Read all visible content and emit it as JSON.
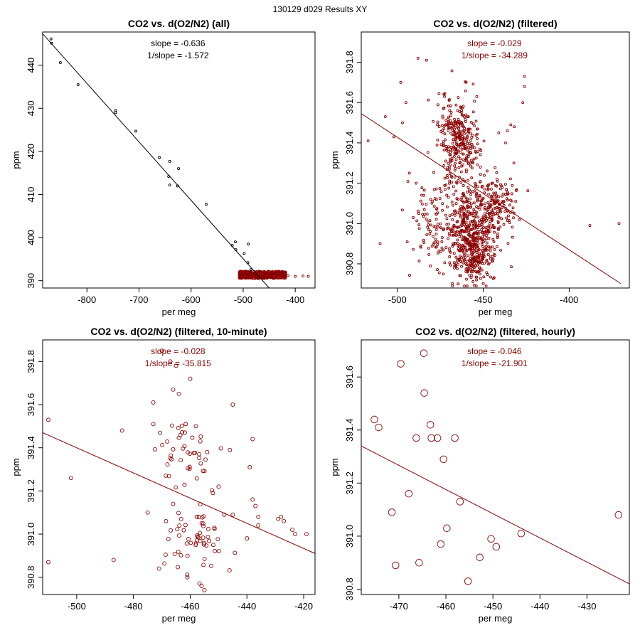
{
  "page_title": "130129   d029   Results XY",
  "chart_data": [
    {
      "type": "scatter",
      "title": "CO2 vs. d(O2/N2) (all)",
      "xlabel": "per meg",
      "ylabel": "ppm",
      "xlim": [
        -885,
        -362
      ],
      "ylim": [
        388.3,
        447.7
      ],
      "xticks": [
        -800,
        -700,
        -600,
        -500,
        -400
      ],
      "yticks": [
        390,
        400,
        410,
        420,
        430,
        440
      ],
      "point_color": "#000000",
      "point_size": "small",
      "annotations": [
        "slope = -0.636",
        "1/slope = -1.572"
      ],
      "fit_line": {
        "slope": -0.636,
        "x": [
          -885,
          -450
        ],
        "y": [
          447.3,
          388.3
        ]
      },
      "points": {
        "x": [
          -869,
          -868,
          -851,
          -817,
          -745,
          -745,
          -706,
          -661,
          -641,
          -643,
          -641,
          -624,
          -626,
          -571,
          -521,
          -515,
          -514,
          -498,
          -490,
          -491,
          -485
        ],
        "y": [
          446.1,
          445.1,
          440.6,
          435.5,
          429.5,
          429.0,
          424.7,
          418.6,
          417.7,
          414.2,
          412.2,
          416.0,
          412.0,
          407.7,
          398.2,
          399.0,
          397.2,
          396.3,
          398.5,
          394.2,
          392.6
        ]
      },
      "cluster": {
        "x_range": [
          -508,
          -418
        ],
        "y_range": [
          390.5,
          392.2
        ],
        "count": 400,
        "outliers": {
          "x": [
            -385,
            -375,
            -400,
            -414
          ],
          "y": [
            391.1,
            391.0,
            391.0,
            391.2
          ]
        }
      }
    },
    {
      "type": "scatter",
      "title": "CO2 vs. d(O2/N2) (filtered)",
      "xlabel": "per meg",
      "ylabel": "ppm",
      "xlim": [
        -521,
        -365
      ],
      "ylim": [
        390.68,
        391.95
      ],
      "xticks": [
        -500,
        -450,
        -400
      ],
      "yticks": [
        390.8,
        391.0,
        391.2,
        391.4,
        391.6,
        391.8
      ],
      "point_color": "#8b0000",
      "point_size": "small",
      "annotations": [
        "slope = -0.029",
        "1/slope = -34.289"
      ],
      "fit_line": {
        "slope": -0.029,
        "x": [
          -521,
          -370
        ],
        "y": [
          391.545,
          390.702
        ]
      },
      "points": {
        "x": [
          -371,
          -388,
          -507,
          -517,
          -510,
          -495,
          -498,
          -502,
          -488,
          -483,
          -489,
          -493,
          -497,
          -426,
          -426,
          -427,
          -432,
          -436,
          -434,
          -441,
          -437
        ],
        "y": [
          391.0,
          390.99,
          391.53,
          391.41,
          390.9,
          391.6,
          391.7,
          391.43,
          391.82,
          391.81,
          391.2,
          391.25,
          391.5,
          391.73,
          391.68,
          391.6,
          391.48,
          391.46,
          391.49,
          391.45,
          391.4
        ]
      },
      "clusters": [
        {
          "cx": -465,
          "cy": 391.42,
          "sx": 6,
          "sy": 0.12,
          "count": 320
        },
        {
          "cx": -457,
          "cy": 390.97,
          "sx": 9,
          "sy": 0.11,
          "count": 500
        },
        {
          "cx": -455,
          "cy": 390.82,
          "sx": 5,
          "sy": 0.05,
          "count": 120
        },
        {
          "cx": -442,
          "cy": 391.1,
          "sx": 6,
          "sy": 0.07,
          "count": 120
        },
        {
          "cx": -480,
          "cy": 391.0,
          "sx": 6,
          "sy": 0.12,
          "count": 80
        }
      ]
    },
    {
      "type": "scatter",
      "title": "CO2 vs. d(O2/N2) (filtered, 10-minute)",
      "xlabel": "per meg",
      "ylabel": "ppm",
      "xlim": [
        -512,
        -416
      ],
      "ylim": [
        390.72,
        391.9
      ],
      "xticks": [
        -500,
        -480,
        -460,
        -440,
        -420
      ],
      "yticks": [
        390.8,
        391.0,
        391.2,
        391.4,
        391.6,
        391.8
      ],
      "point_color": "#8b0000",
      "point_size": "medium",
      "annotations": [
        "slope = -0.028",
        "1/slope = -35.815"
      ],
      "fit_line": {
        "slope": -0.028,
        "x": [
          -512,
          -416
        ],
        "y": [
          391.47,
          390.91
        ]
      },
      "points": {
        "x": [
          -510,
          -510,
          -502,
          -487,
          -484,
          -475,
          -473,
          -473,
          -470,
          -467,
          -466,
          -465,
          -464,
          -460,
          -454,
          -452,
          -450,
          -448,
          -446,
          -445,
          -445,
          -440,
          -439,
          -438,
          -438,
          -437,
          -436,
          -436,
          -429,
          -428,
          -427,
          -424,
          -423,
          -419,
          -455,
          -456,
          -461,
          -471,
          -458
        ],
        "y": [
          391.53,
          390.87,
          391.26,
          390.88,
          391.48,
          391.1,
          391.51,
          391.61,
          391.85,
          391.8,
          391.67,
          391.78,
          391.65,
          391.72,
          391.38,
          391.19,
          391.22,
          391.09,
          391.39,
          391.6,
          391.09,
          390.98,
          391.31,
          391.44,
          391.16,
          391.13,
          391.08,
          391.04,
          391.07,
          391.08,
          391.06,
          391.02,
          391.0,
          391.0,
          390.74,
          390.76,
          390.8,
          390.84,
          391.5
        ]
      },
      "clusters": [
        {
          "cx": -462,
          "cy": 391.35,
          "sx": 5,
          "sy": 0.1,
          "count": 45
        },
        {
          "cx": -458,
          "cy": 390.97,
          "sx": 6,
          "sy": 0.09,
          "count": 55
        }
      ]
    },
    {
      "type": "scatter",
      "title": "CO2 vs. d(O2/N2) (filtered, hourly)",
      "xlabel": "per meg",
      "ylabel": "ppm",
      "xlim": [
        -478,
        -421
      ],
      "ylim": [
        390.78,
        391.74
      ],
      "xticks": [
        -470,
        -460,
        -450,
        -440,
        -430
      ],
      "yticks": [
        390.8,
        391.0,
        391.2,
        391.4,
        391.6
      ],
      "point_color": "#8b0000",
      "point_size": "large",
      "annotations": [
        "slope = -0.046",
        "1/slope = -21.901"
      ],
      "fit_line": {
        "slope": -0.046,
        "x": [
          -478,
          -421
        ],
        "y": [
          391.34,
          390.82
        ]
      },
      "points": {
        "x": [
          -475.2,
          -474.3,
          -469.6,
          -464.7,
          -464.6,
          -463.3,
          -463.1,
          -461.8,
          -460.5,
          -458.1,
          -457.0,
          -455.3,
          -452.8,
          -450.4,
          -449.3,
          -444.0,
          -423.3,
          -471.5,
          -470.7,
          -466.3,
          -465.7,
          -467.9,
          -461.1,
          -459.8
        ],
        "y": [
          391.44,
          391.41,
          391.65,
          391.69,
          391.54,
          391.42,
          391.37,
          391.37,
          391.29,
          391.37,
          391.13,
          390.83,
          390.92,
          390.99,
          390.96,
          391.01,
          391.08,
          391.09,
          390.89,
          391.37,
          390.9,
          391.16,
          390.97,
          391.03
        ]
      }
    }
  ]
}
